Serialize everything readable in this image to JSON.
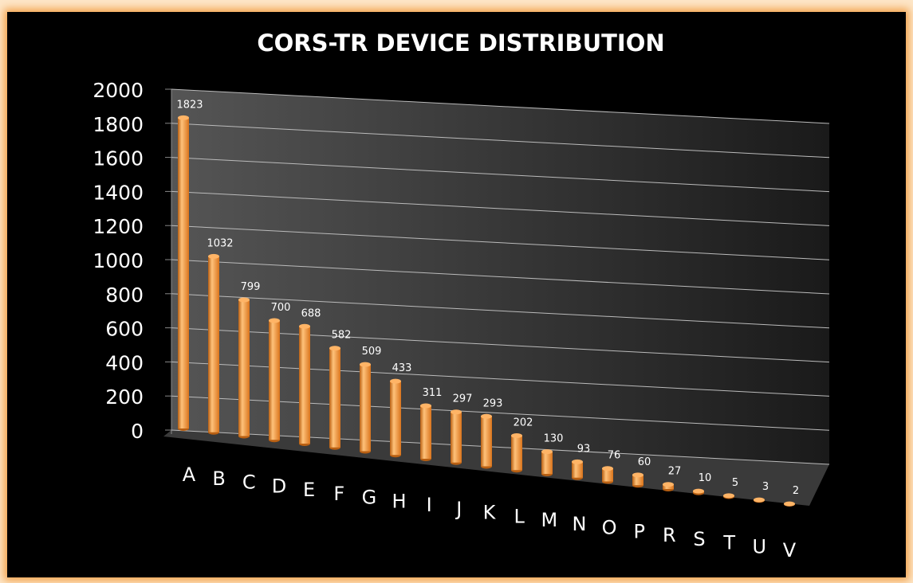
{
  "chart_data": {
    "type": "bar",
    "title": "CORS-TR DEVICE DISTRIBUTION",
    "categories": [
      "A",
      "B",
      "C",
      "D",
      "E",
      "F",
      "G",
      "H",
      "I",
      "J",
      "K",
      "L",
      "M",
      "N",
      "O",
      "P",
      "R",
      "S",
      "T",
      "U",
      "V"
    ],
    "values": [
      1823,
      1032,
      799,
      700,
      688,
      582,
      509,
      433,
      311,
      297,
      293,
      202,
      130,
      93,
      76,
      60,
      27,
      10,
      5,
      3,
      2
    ],
    "color": "#f7962e",
    "ylim": [
      0,
      2000
    ],
    "yticks": [
      0,
      200,
      400,
      600,
      800,
      1000,
      1200,
      1400,
      1600,
      1800,
      2000
    ],
    "grid": true
  }
}
